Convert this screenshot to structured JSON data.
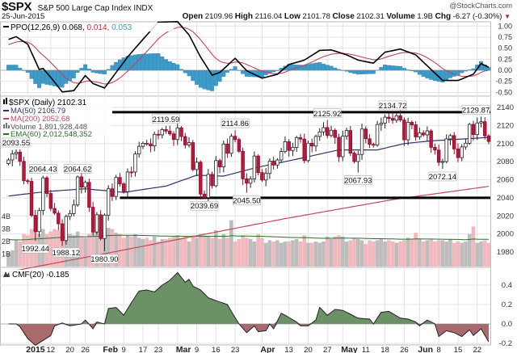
{
  "header": {
    "symbol": "$SPX",
    "name": "S&P 500 Large Cap Index",
    "exchange": "INDX",
    "brand": "@StockCharts.com",
    "date": "25-Jun-2015",
    "open_label": "Open",
    "open": "2109.96",
    "high_label": "High",
    "high": "2116.04",
    "low_label": "Low",
    "low": "2101.78",
    "close_label": "Close",
    "close": "2102.31",
    "volume_label": "Volume",
    "volume": "1.9B",
    "chg_label": "Chg",
    "chg": "-6.27 (-0.30%)",
    "chg_arrow": "▼"
  },
  "colors": {
    "up": "#000000",
    "down": "#c0143c",
    "ma50": "#2b3566",
    "ma200": "#c24a5a",
    "vol_up": "#bdbdbd",
    "vol_down": "#f1b9bd",
    "ema60": "#2f6b2f",
    "ppo": "#000000",
    "signal": "#c0485a",
    "hist": "#3d9bc9",
    "cmf_pos": "#6c9166",
    "cmf_neg": "#a86a6c",
    "grid": "#e3e3e3"
  },
  "legends": {
    "ppo": {
      "name": "PPO(12,26,9)",
      "v1": "0.068,",
      "v2": "0.014,",
      "v3": "0.053"
    },
    "price": "$SPX (Daily) 2102.31",
    "ma50": "MA(50) 2106.79",
    "ma200": "MA(200) 2052.68",
    "volume": "Volume 1,891,928,448",
    "ema60": "EMA(60) 2,012,548,352",
    "cmf": "CMF(20) -0.185"
  },
  "chart_data": {
    "type": "candlestick",
    "title": "$SPX (Daily)",
    "period": "Dec 24, 2014 - Jun 25, 2015 (trading-day index 0-125)",
    "close": [
      2081.88,
      2088.77,
      2090.57,
      2080.35,
      2058.9,
      2058.2,
      2020.58,
      2002.61,
      2025.9,
      2062.14,
      2044.81,
      2028.26,
      2023.03,
      2011.27,
      1992.67,
      2019.42,
      2022.55,
      2032.12,
      2063.15,
      2051.82,
      2057.09,
      2029.55,
      2002.16,
      2021.25,
      1994.99,
      2020.85,
      2050.03,
      2041.51,
      2062.52,
      2055.47,
      2046.74,
      2068.59,
      2068.53,
      2088.48,
      2096.99,
      2100.34,
      2099.68,
      2097.45,
      2110.3,
      2109.66,
      2115.48,
      2113.86,
      2110.74,
      2104.5,
      2117.39,
      2107.78,
      2098.53,
      2101.04,
      2071.26,
      2079.43,
      2044.16,
      2040.24,
      2065.95,
      2053.4,
      2081.19,
      2074.28,
      2099.5,
      2089.27,
      2108.1,
      2104.42,
      2091.5,
      2061.05,
      2056.15,
      2061.02,
      2086.24,
      2067.89,
      2059.69,
      2066.96,
      2080.62,
      2076.33,
      2081.9,
      2091.18,
      2102.06,
      2092.43,
      2095.84,
      2106.63,
      2104.99,
      2081.18,
      2100.4,
      2097.29,
      2107.96,
      2112.93,
      2117.69,
      2108.92,
      2114.76,
      2106.85,
      2085.51,
      2108.29,
      2114.49,
      2089.46,
      2080.15,
      2088.0,
      2116.1,
      2105.33,
      2099.12,
      2098.48,
      2121.1,
      2122.73,
      2129.2,
      2127.83,
      2125.85,
      2130.82,
      2126.06,
      2104.2,
      2123.48,
      2120.79,
      2107.39,
      2111.73,
      2109.6,
      2114.07,
      2095.84,
      2092.83,
      2079.28,
      2080.15,
      2105.2,
      2108.86,
      2094.11,
      2084.43,
      2096.29,
      2100.44,
      2121.24,
      2109.99,
      2122.85,
      2124.2,
      2108.58,
      2102.31
    ],
    "volume_billions": [
      1.1,
      1.3,
      2.1,
      2.0,
      2.6,
      2.5,
      3.0,
      2.9,
      2.6,
      3.0,
      2.6,
      2.8,
      3.0,
      2.9,
      3.1,
      2.8,
      2.6,
      2.5,
      2.8,
      2.4,
      2.3,
      2.6,
      2.9,
      2.8,
      3.0,
      2.9,
      3.1,
      3.0,
      2.7,
      2.6,
      2.3,
      2.5,
      2.4,
      2.6,
      2.3,
      2.2,
      2.3,
      2.1,
      2.4,
      2.0,
      2.2,
      2.2,
      2.3,
      2.4,
      2.5,
      2.3,
      2.4,
      2.0,
      2.5,
      2.3,
      2.6,
      2.5,
      2.4,
      2.3,
      2.9,
      2.2,
      2.6,
      2.3,
      3.7,
      2.0,
      2.2,
      2.5,
      2.3,
      2.2,
      2.0,
      2.6,
      2.3,
      1.9,
      2.1,
      2.0,
      2.1,
      1.9,
      2.0,
      2.0,
      2.1,
      2.2,
      2.0,
      2.5,
      1.9,
      1.9,
      2.0,
      1.9,
      2.0,
      2.4,
      2.2,
      2.4,
      2.5,
      2.4,
      2.0,
      2.1,
      2.3,
      2.2,
      2.1,
      1.8,
      2.1,
      2.0,
      2.1,
      2.2,
      2.0,
      2.1,
      2.0,
      1.9,
      2.0,
      2.1,
      2.3,
      2.2,
      2.7,
      2.2,
      2.0,
      2.1,
      2.2,
      2.0,
      2.1,
      2.1,
      2.0,
      2.2,
      1.9,
      2.0,
      1.9,
      2.0,
      2.6,
      3.2,
      1.9,
      2.0,
      2.1,
      1.89
    ],
    "ma50_points": [
      [
        0,
        2042
      ],
      [
        10,
        2047
      ],
      [
        20,
        2050
      ],
      [
        30,
        2046
      ],
      [
        41,
        2053
      ],
      [
        49,
        2065
      ],
      [
        56,
        2064
      ],
      [
        65,
        2074
      ],
      [
        72,
        2080
      ],
      [
        86,
        2093
      ],
      [
        96,
        2093
      ],
      [
        103,
        2100
      ],
      [
        110,
        2103
      ],
      [
        125,
        2106.79
      ]
    ],
    "ma200_points": [
      [
        0,
        1958
      ],
      [
        26,
        1979
      ],
      [
        72,
        2017
      ],
      [
        100,
        2038
      ],
      [
        125,
        2052.68
      ]
    ],
    "ppo_points": [
      [
        0,
        0.7
      ],
      [
        2,
        0.76
      ],
      [
        5,
        0.59
      ],
      [
        8,
        0.02
      ],
      [
        9,
        0.04
      ],
      [
        11,
        -0.16
      ],
      [
        14,
        -0.49
      ],
      [
        17,
        -0.46
      ],
      [
        20,
        -0.12
      ],
      [
        22,
        -0.3
      ],
      [
        25,
        -0.4
      ],
      [
        28,
        -0.05
      ],
      [
        31,
        0.3
      ],
      [
        35,
        0.7
      ],
      [
        39,
        1.09
      ],
      [
        44,
        1.1
      ],
      [
        47,
        0.8
      ],
      [
        50,
        0.3
      ],
      [
        53,
        -0.11
      ],
      [
        55,
        -0.05
      ],
      [
        59,
        0.27
      ],
      [
        62,
        -0.01
      ],
      [
        66,
        -0.18
      ],
      [
        70,
        -0.09
      ],
      [
        73,
        0.13
      ],
      [
        77,
        0.23
      ],
      [
        81,
        0.45
      ],
      [
        84,
        0.46
      ],
      [
        88,
        0.35
      ],
      [
        91,
        0.23
      ],
      [
        95,
        0.16
      ],
      [
        98,
        0.41
      ],
      [
        102,
        0.48
      ],
      [
        106,
        0.35
      ],
      [
        110,
        0.02
      ],
      [
        113,
        -0.23
      ],
      [
        117,
        -0.23
      ],
      [
        121,
        -0.09
      ],
      [
        123,
        0.15
      ],
      [
        125,
        0.068
      ]
    ],
    "cmf_points": [
      [
        0,
        0
      ],
      [
        2,
        0
      ],
      [
        3,
        -0.03
      ],
      [
        5,
        -0.15
      ],
      [
        7,
        -0.22
      ],
      [
        9,
        -0.17
      ],
      [
        11,
        -0.12
      ],
      [
        12,
        -0.02
      ],
      [
        14,
        0.01
      ],
      [
        16,
        -0.02
      ],
      [
        19,
        0
      ],
      [
        20,
        0.04
      ],
      [
        22,
        -0.05
      ],
      [
        23,
        0.02
      ],
      [
        25,
        0
      ],
      [
        26,
        0.16
      ],
      [
        28,
        0.17
      ],
      [
        30,
        0.09
      ],
      [
        32,
        0.22
      ],
      [
        34,
        0.34
      ],
      [
        36,
        0.35
      ],
      [
        38,
        0.33
      ],
      [
        40,
        0.4
      ],
      [
        42,
        0.45
      ],
      [
        44,
        0.53
      ],
      [
        46,
        0.43
      ],
      [
        47,
        0.46
      ],
      [
        48,
        0.39
      ],
      [
        50,
        0.35
      ],
      [
        52,
        0.27
      ],
      [
        54,
        0.24
      ],
      [
        57,
        0.2
      ],
      [
        58,
        0.13
      ],
      [
        60,
        0
      ],
      [
        62,
        -0.09
      ],
      [
        64,
        -0.02
      ],
      [
        65,
        -0.08
      ],
      [
        67,
        -0.07
      ],
      [
        68,
        0
      ],
      [
        69,
        -0.05
      ],
      [
        71,
        0.11
      ],
      [
        72,
        0.09
      ],
      [
        75,
        0.02
      ],
      [
        76,
        -0.02
      ],
      [
        78,
        -0.02
      ],
      [
        80,
        0.04
      ],
      [
        81,
        0.17
      ],
      [
        83,
        0.09
      ],
      [
        85,
        0.15
      ],
      [
        87,
        0.14
      ],
      [
        91,
        0.06
      ],
      [
        94,
        0.05
      ],
      [
        95,
        0
      ],
      [
        97,
        0.12
      ],
      [
        99,
        0.13
      ],
      [
        102,
        0.06
      ],
      [
        104,
        0.05
      ],
      [
        106,
        0.02
      ],
      [
        107,
        -0.02
      ],
      [
        109,
        0.04
      ],
      [
        111,
        0
      ],
      [
        112,
        -0.13
      ],
      [
        114,
        -0.07
      ],
      [
        116,
        -0.09
      ],
      [
        118,
        -0.13
      ],
      [
        120,
        -0.06
      ],
      [
        121,
        -0.12
      ],
      [
        123,
        -0.05
      ],
      [
        125,
        -0.185
      ]
    ],
    "price_labels": [
      {
        "idx": 2,
        "value": "2093.55",
        "type": "high"
      },
      {
        "idx": 9,
        "value": "2064.43",
        "type": "high"
      },
      {
        "idx": 18,
        "value": "2064.62",
        "type": "high"
      },
      {
        "idx": 7,
        "value": "1992.44",
        "type": "low"
      },
      {
        "idx": 15,
        "value": "1988.12",
        "type": "low"
      },
      {
        "idx": 25,
        "value": "1980.90",
        "type": "low"
      },
      {
        "idx": 41,
        "value": "2119.59",
        "type": "high"
      },
      {
        "idx": 59,
        "value": "2114.86",
        "type": "high"
      },
      {
        "idx": 51,
        "value": "2039.69",
        "type": "low"
      },
      {
        "idx": 62,
        "value": "2045.50",
        "type": "low"
      },
      {
        "idx": 83,
        "value": "2125.92",
        "type": "high"
      },
      {
        "idx": 91,
        "value": "2067.93",
        "type": "low"
      },
      {
        "idx": 100,
        "value": "2134.72",
        "type": "high"
      },
      {
        "idx": 113,
        "value": "2072.14",
        "type": "low"
      },
      {
        "idx": 123,
        "value": "2129.87",
        "type": "high"
      }
    ],
    "trendlines": [
      {
        "level": 2134.7,
        "from_idx": 27
      },
      {
        "level": 2040,
        "from_idx": 29
      }
    ],
    "x_ticks": [
      {
        "idx": 5,
        "label": "2015",
        "bold": true
      },
      {
        "idx": 11,
        "label": "12"
      },
      {
        "idx": 16,
        "label": "20"
      },
      {
        "idx": 20,
        "label": "26"
      },
      {
        "idx": 25,
        "label": "Feb",
        "bold": true
      },
      {
        "idx": 30,
        "label": "9"
      },
      {
        "idx": 35,
        "label": "17"
      },
      {
        "idx": 39,
        "label": "23"
      },
      {
        "idx": 44,
        "label": "Mar",
        "bold": true
      },
      {
        "idx": 49,
        "label": "9"
      },
      {
        "idx": 54,
        "label": "16"
      },
      {
        "idx": 59,
        "label": "23"
      },
      {
        "idx": 66,
        "label": "Apr",
        "bold": true
      },
      {
        "idx": 73,
        "label": "13"
      },
      {
        "idx": 78,
        "label": "20"
      },
      {
        "idx": 83,
        "label": "27"
      },
      {
        "idx": 87,
        "label": "May",
        "bold": true
      },
      {
        "idx": 93,
        "label": "11"
      },
      {
        "idx": 98,
        "label": "18"
      },
      {
        "idx": 103,
        "label": "26"
      },
      {
        "idx": 107,
        "label": "Jun",
        "bold": true
      },
      {
        "idx": 112,
        "label": "8"
      },
      {
        "idx": 117,
        "label": "15"
      },
      {
        "idx": 122,
        "label": "22"
      }
    ],
    "price_axis": {
      "ticks": [
        "2140",
        "2120",
        "2100",
        "2080",
        "2060",
        "2040",
        "2020",
        "2000",
        "1980"
      ],
      "range": [
        1980,
        2140
      ]
    },
    "volume_axis": {
      "ticks": [
        "4B",
        "3B",
        "2B",
        "1B"
      ]
    },
    "ppo_axis": {
      "ticks": [
        "1.00",
        "0.75",
        "0.50",
        "0.25",
        "0.00",
        "-0.25",
        "-0.50"
      ],
      "range": [
        -0.5,
        1.0
      ]
    },
    "cmf_axis": {
      "ticks": [
        "0.4",
        "0.2",
        "0.0",
        "-0.2"
      ],
      "range": [
        -0.2,
        0.4
      ]
    }
  }
}
